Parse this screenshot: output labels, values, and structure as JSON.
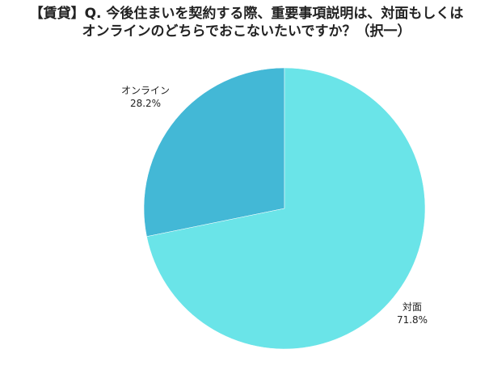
{
  "chart_data": {
    "type": "pie",
    "title_lines": [
      "【賃貸】Q. 今後住まいを契約する際、重要事項説明は、対面もしくは",
      "オンラインのどちらでおこないたいですか？（択一）"
    ],
    "slices": [
      {
        "label": "オンライン",
        "value": 28.2,
        "value_text": "28.2%",
        "color": "#43b8d6"
      },
      {
        "label": "対面",
        "value": 71.8,
        "value_text": "71.8%",
        "color": "#6ae4e8"
      }
    ],
    "start": "12 o'clock",
    "direction": "counterclockwise",
    "legend": "none"
  }
}
